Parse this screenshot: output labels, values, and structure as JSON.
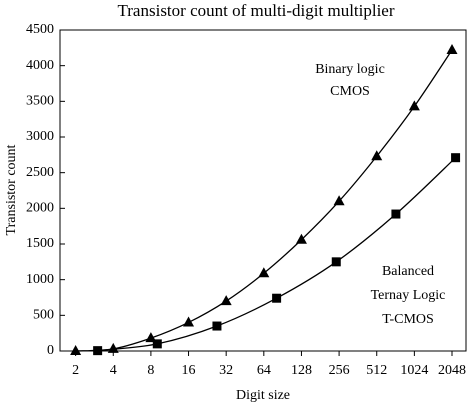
{
  "chart_data": {
    "type": "line",
    "title": "Transistor count of multi-digit multiplier",
    "xlabel": "Digit size",
    "ylabel": "Transistor count",
    "xscale": "log",
    "xlim": [
      1.5,
      2650
    ],
    "xticks": [
      2,
      4,
      8,
      16,
      32,
      64,
      128,
      256,
      512,
      1024,
      2048
    ],
    "ylim": [
      0,
      4500
    ],
    "yticks": [
      0,
      500,
      1000,
      1500,
      2000,
      2500,
      3000,
      3500,
      4000,
      4500
    ],
    "series": [
      {
        "name": "Binary logic CMOS",
        "color": "#000000",
        "marker": "triangle",
        "x": [
          2,
          4,
          8,
          16,
          32,
          64,
          128,
          256,
          512,
          1024,
          2048
        ],
        "values": [
          0,
          30,
          180,
          400,
          700,
          1090,
          1560,
          2100,
          2730,
          3430,
          4220
        ]
      },
      {
        "name": "Balanced Ternay Logic T-CMOS",
        "color": "#000000",
        "marker": "square",
        "x": [
          3,
          9,
          27,
          81,
          243,
          729,
          2187
        ],
        "values": [
          5,
          100,
          350,
          740,
          1250,
          1920,
          2710
        ]
      }
    ],
    "annotations": [
      [
        "Binary logic",
        "CMOS"
      ],
      [
        "Balanced",
        "Ternay Logic",
        "T-CMOS"
      ]
    ]
  }
}
